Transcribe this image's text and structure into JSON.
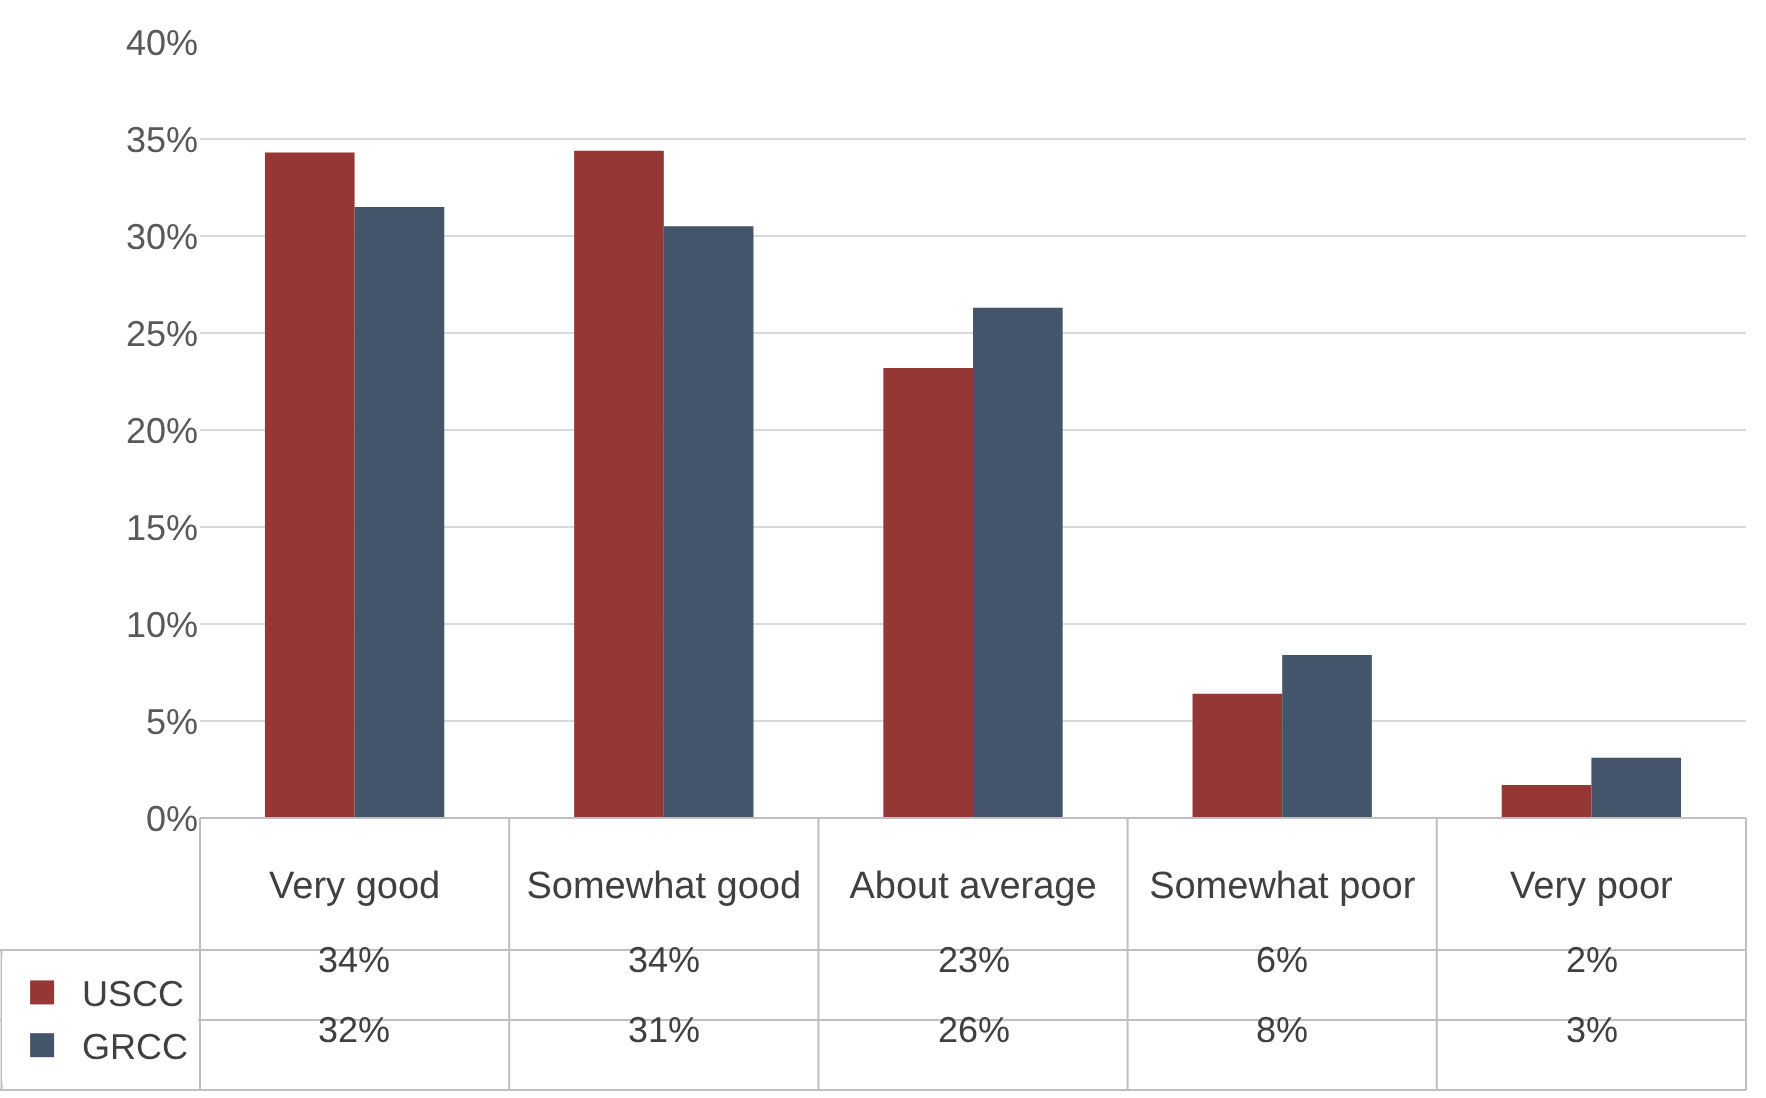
{
  "chart_data": {
    "type": "bar",
    "categories": [
      "Very good",
      "Somewhat good",
      "About average",
      "Somewhat poor",
      "Very poor"
    ],
    "series": [
      {
        "name": "USCC",
        "color": "#953735",
        "values": [
          34.3,
          34.4,
          23.2,
          6.4,
          1.7
        ],
        "value_labels": [
          "34%",
          "34%",
          "23%",
          "6%",
          "2%"
        ]
      },
      {
        "name": "GRCC",
        "color": "#44546a",
        "values": [
          31.5,
          30.5,
          26.3,
          8.4,
          3.1
        ],
        "value_labels": [
          "32%",
          "31%",
          "26%",
          "8%",
          "3%"
        ]
      }
    ],
    "ylim": [
      0,
      40
    ],
    "yticks": [
      {
        "value": 0,
        "label": "0%"
      },
      {
        "value": 5,
        "label": "5%"
      },
      {
        "value": 10,
        "label": "10%"
      },
      {
        "value": 15,
        "label": "15%"
      },
      {
        "value": 20,
        "label": "20%"
      },
      {
        "value": 25,
        "label": "25%"
      },
      {
        "value": 30,
        "label": "30%"
      },
      {
        "value": 35,
        "label": "35%"
      },
      {
        "value": 40,
        "label": "40%"
      }
    ],
    "grid": "y",
    "legend": "bottom left"
  }
}
